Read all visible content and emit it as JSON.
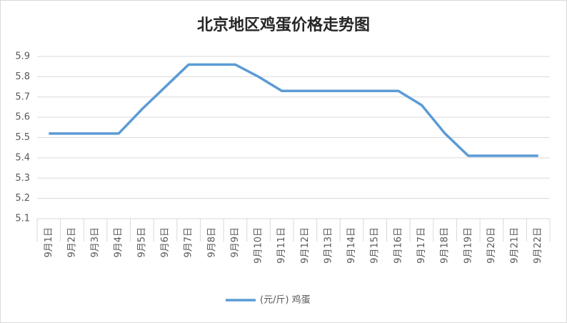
{
  "chart_data": {
    "type": "line",
    "title": "北京地区鸡蛋价格走势图",
    "categories": [
      "9月1日",
      "9月2日",
      "9月3日",
      "9月4日",
      "9月5日",
      "9月6日",
      "9月7日",
      "9月8日",
      "9月9日",
      "9月10日",
      "9月11日",
      "9月12日",
      "9月13日",
      "9月14日",
      "9月15日",
      "9月16日",
      "9月17日",
      "9月18日",
      "9月19日",
      "9月20日",
      "9月21日",
      "9月22日"
    ],
    "series": [
      {
        "name": "(元/斤) 鸡蛋",
        "color": "#5b9bd5",
        "values": [
          5.52,
          5.52,
          5.52,
          5.52,
          5.64,
          5.75,
          5.86,
          5.86,
          5.86,
          5.8,
          5.73,
          5.73,
          5.73,
          5.73,
          5.73,
          5.73,
          5.66,
          5.52,
          5.41,
          5.41,
          5.41,
          5.41
        ]
      }
    ],
    "ylim": [
      5.1,
      5.9
    ],
    "yticks": [
      5.1,
      5.2,
      5.3,
      5.4,
      5.5,
      5.6,
      5.7,
      5.8,
      5.9
    ],
    "grid": true,
    "legend": "bottom"
  }
}
